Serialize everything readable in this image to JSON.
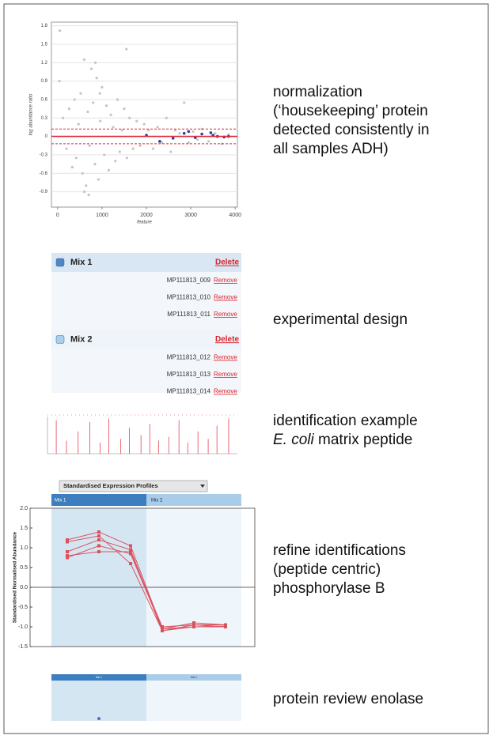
{
  "captions": [
    {
      "lines": [
        "normalization",
        "(‘housekeeping’ protein",
        "detected consistently in",
        "all samples ADH)"
      ]
    },
    {
      "lines": [
        "experimental design"
      ]
    },
    {
      "lines": [
        "identification example"
      ],
      "species": "E. coli",
      "rest": "matrix peptide"
    },
    {
      "lines": [
        "refine identifications",
        "(peptide centric)",
        "phosphorylase B"
      ]
    },
    {
      "lines": [
        "protein review enolase"
      ]
    }
  ],
  "design": {
    "groups": [
      {
        "name": "Mix 1",
        "action": "Delete",
        "samples": [
          {
            "id": "MP111813_009",
            "action": "Remove"
          },
          {
            "id": "MP111813_010",
            "action": "Remove"
          },
          {
            "id": "MP111813_011",
            "action": "Remove"
          }
        ]
      },
      {
        "name": "Mix 2",
        "action": "Delete",
        "samples": [
          {
            "id": "MP111813_012",
            "action": "Remove"
          },
          {
            "id": "MP111813_013",
            "action": "Remove"
          },
          {
            "id": "MP111813_014",
            "action": "Remove"
          }
        ]
      }
    ]
  },
  "chart_data": [
    {
      "type": "scatter",
      "xlabel": "feature",
      "ylabel": "log abundance ratio",
      "xlim": [
        -140,
        4050
      ],
      "ylim": [
        -1.15,
        1.86
      ],
      "xticks": [
        0,
        1000,
        2000,
        3000,
        4000
      ],
      "yticks": [
        -0.9,
        -0.6,
        -0.3,
        0,
        0.3,
        0.6,
        0.9,
        1.2,
        1.5,
        1.8
      ],
      "grid": true,
      "hlines": [
        {
          "value": 0,
          "dashed": false,
          "color": "#e0283a"
        },
        {
          "value": 0.12,
          "dashed": true,
          "color": "#e0283a"
        },
        {
          "value": -0.12,
          "dashed": true,
          "color": "#e0283a"
        }
      ],
      "series": [
        {
          "color": "#c4c4c4",
          "x": [
            50,
            120,
            200,
            260,
            330,
            380,
            420,
            470,
            520,
            560,
            600,
            640,
            680,
            720,
            760,
            800,
            840,
            880,
            920,
            960,
            1000,
            1050,
            1100,
            1150,
            1200,
            1250,
            1300,
            1350,
            1400,
            1450,
            1500,
            1560,
            1620,
            1700,
            1780,
            1860,
            1950,
            2050,
            2150,
            2250,
            2350,
            2450,
            2550,
            2650,
            2750,
            2850,
            2950,
            3050,
            3150,
            3250,
            3400,
            3550,
            3700,
            3850,
            40,
            700,
            1550,
            850,
            950,
            600
          ],
          "values": [
            1.72,
            0.3,
            -0.2,
            0.45,
            -0.5,
            0.6,
            -0.35,
            0.2,
            0.7,
            -0.6,
            1.25,
            -0.8,
            0.4,
            -0.15,
            1.1,
            0.55,
            -0.45,
            0.95,
            -0.7,
            0.25,
            0.8,
            -0.3,
            0.5,
            -0.55,
            0.35,
            0.15,
            -0.4,
            0.6,
            -0.25,
            0.1,
            0.45,
            -0.35,
            0.3,
            -0.2,
            0.25,
            -0.15,
            0.2,
            0.1,
            -0.2,
            0.15,
            -0.1,
            0.3,
            -0.25,
            0.1,
            0.05,
            0.55,
            -0.1,
            0.08,
            -0.05,
            0.12,
            -0.08,
            0.05,
            -0.12,
            0.03,
            0.9,
            -0.95,
            1.42,
            1.2,
            0.7,
            -0.9
          ]
        },
        {
          "color": "#2b3f9c",
          "x": [
            2000,
            2300,
            2600,
            2850,
            2950,
            3100,
            3250,
            3450,
            3500,
            3600,
            3750,
            3850
          ],
          "values": [
            0.02,
            -0.08,
            -0.03,
            0.05,
            0.08,
            -0.02,
            0.04,
            0.06,
            0.02,
            0,
            -0.01,
            0
          ]
        }
      ]
    },
    {
      "type": "spectrum",
      "xlim": [
        0,
        1300
      ],
      "ylim": [
        0,
        1
      ],
      "color": "#e0283a",
      "x": [
        60,
        130,
        210,
        290,
        360,
        420,
        500,
        560,
        640,
        700,
        760,
        830,
        900,
        960,
        1030,
        1100,
        1160,
        1240
      ],
      "values": [
        0.9,
        0.35,
        0.6,
        0.85,
        0.3,
        0.95,
        0.4,
        0.7,
        0.5,
        0.8,
        0.35,
        0.45,
        0.9,
        0.3,
        0.6,
        0.4,
        0.75,
        0.95
      ]
    },
    {
      "type": "line",
      "dropdown": "Standardised Expression Profiles",
      "groups": [
        "Mix 1",
        "Mix 2"
      ],
      "ylabel": "Standardised Normalised Abundance",
      "ylim": [
        -1.5,
        2
      ],
      "yticks": [
        -1.5,
        {
          "value": -1,
          "label": "-1.0"
        },
        -0.5,
        {
          "value": 0,
          "label": "0.0"
        },
        0.5,
        {
          "value": 1,
          "label": "1.0"
        },
        1.5,
        {
          "value": 2,
          "label": "2.0"
        }
      ],
      "categories": [
        null,
        null,
        null,
        null,
        null,
        null
      ],
      "series": [
        {
          "color": "#d9535f",
          "values": [
            1.2,
            1.4,
            1.05,
            -1.05,
            -0.9,
            -0.95
          ]
        },
        {
          "color": "#d9535f",
          "values": [
            0.9,
            1.2,
            0.95,
            -1.1,
            -0.95,
            -1.0
          ]
        },
        {
          "color": "#d9535f",
          "values": [
            0.75,
            1.05,
            0.85,
            -1.05,
            -1.0,
            -1.0
          ]
        },
        {
          "color": "#d9535f",
          "values": [
            0.8,
            0.9,
            0.9,
            -1.0,
            -0.95,
            -0.95
          ]
        },
        {
          "color": "#d9535f",
          "values": [
            1.15,
            1.3,
            0.6,
            -1.1,
            -1.0,
            -0.98
          ]
        }
      ]
    },
    {
      "type": "review",
      "groups": [
        "Mix 1",
        "Mix 2"
      ],
      "ylim": [
        -1.5,
        2
      ],
      "values": [
        -1.3
      ],
      "color": "#5b6fae"
    }
  ]
}
